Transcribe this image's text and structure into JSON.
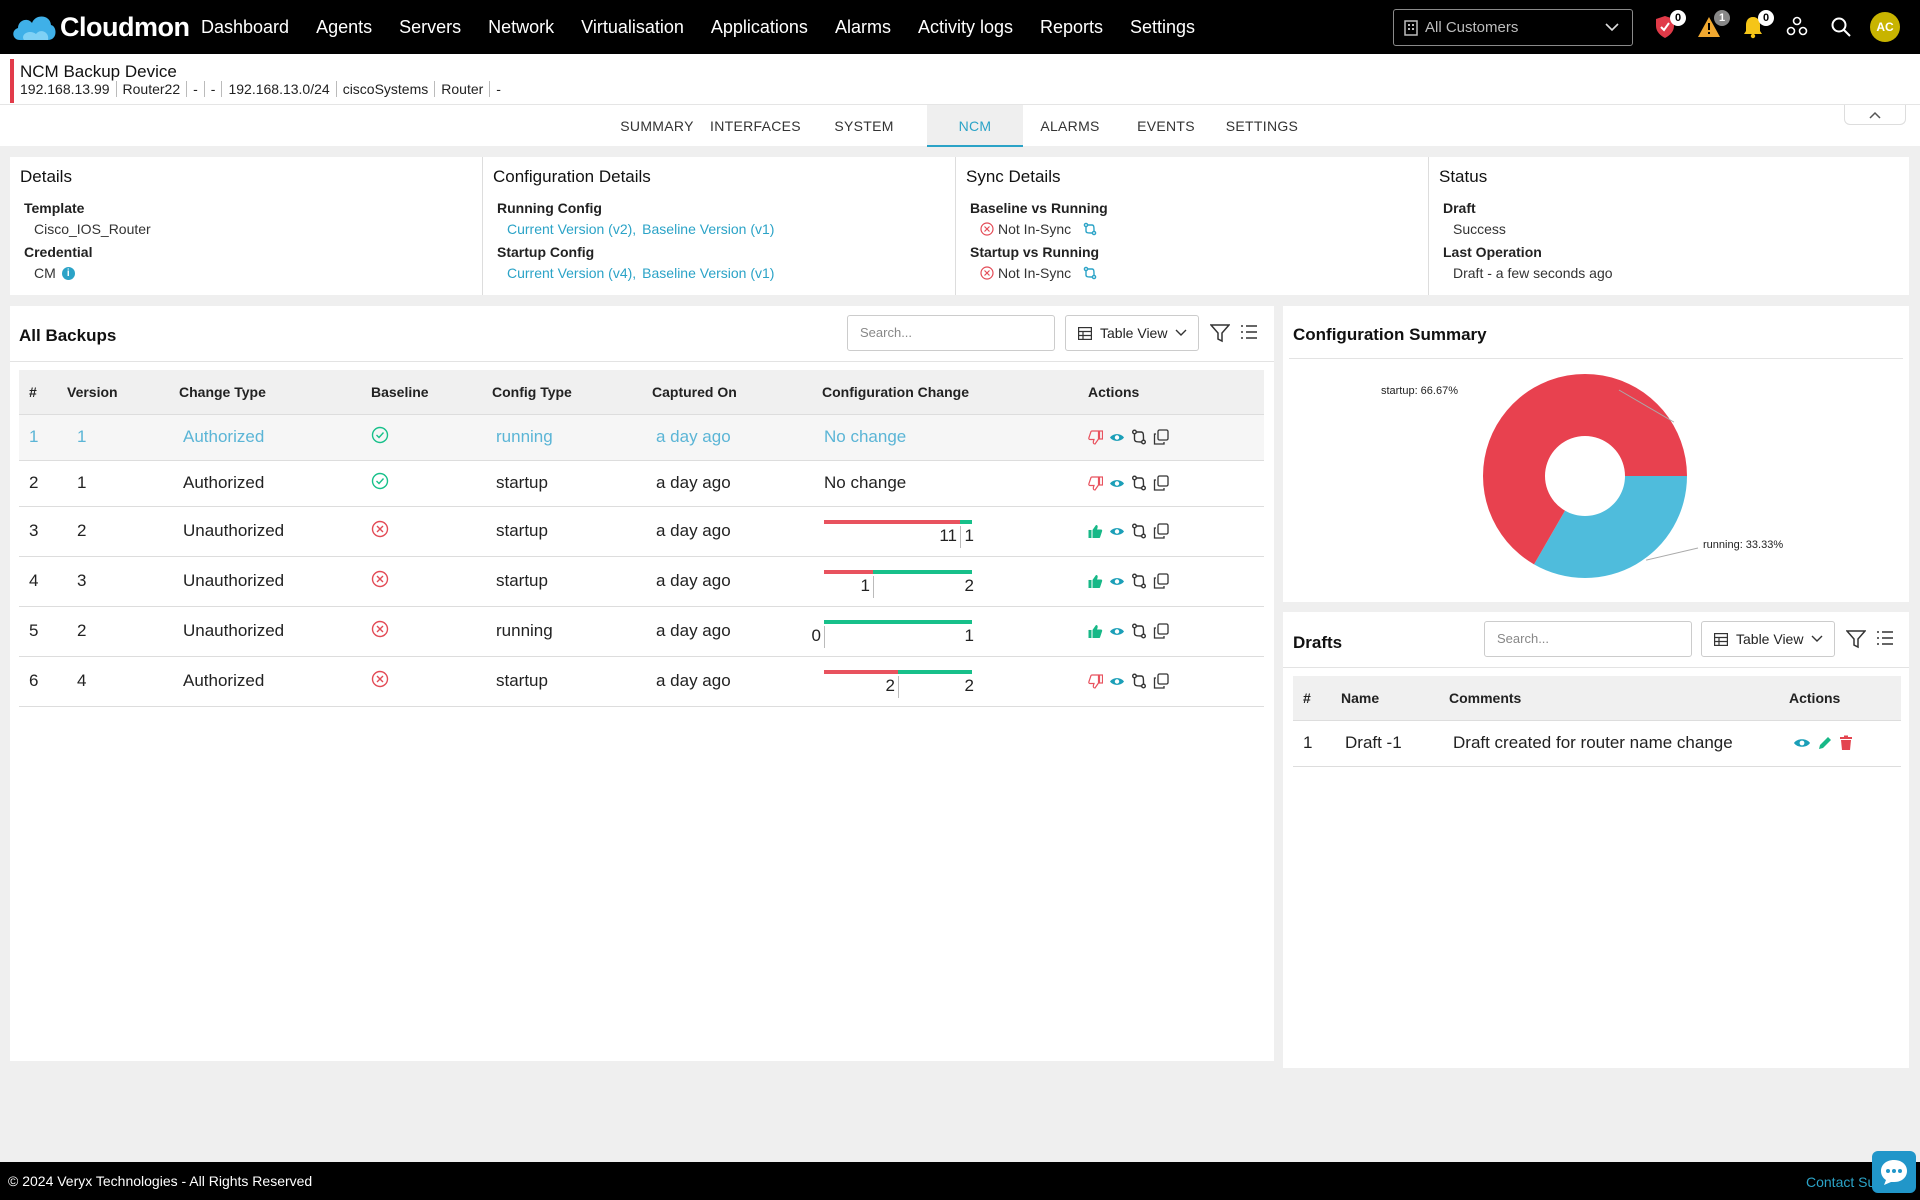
{
  "app": {
    "logo_text": "Cloudmon"
  },
  "nav": [
    "Dashboard",
    "Agents",
    "Servers",
    "Network",
    "Virtualisation",
    "Applications",
    "Alarms",
    "Activity logs",
    "Reports",
    "Settings"
  ],
  "customer_select": {
    "value": "All Customers"
  },
  "top_icons": {
    "shield_count": "0",
    "warning_count": "1",
    "bell_count": "0",
    "avatar": "AC"
  },
  "device": {
    "name": "NCM Backup Device",
    "meta": [
      "192.168.13.99",
      "Router22",
      "-",
      "-",
      "192.168.13.0/24",
      "ciscoSystems",
      "Router",
      "-"
    ]
  },
  "tabs": [
    "SUMMARY",
    "INTERFACES",
    "SYSTEM METRICS",
    "NCM",
    "ALARMS",
    "EVENTS",
    "SETTINGS"
  ],
  "active_tab": "NCM",
  "details": {
    "title": "Details",
    "template_label": "Template",
    "template_value": "Cisco_IOS_Router",
    "credential_label": "Credential",
    "credential_value": "CM"
  },
  "config_details": {
    "title": "Configuration Details",
    "running_label": "Running Config",
    "running_current": "Current Version (v2),",
    "running_baseline": "Baseline Version (v1)",
    "startup_label": "Startup Config",
    "startup_current": "Current Version (v4),",
    "startup_baseline": "Baseline Version (v1)"
  },
  "sync_details": {
    "title": "Sync Details",
    "bvr_label": "Baseline vs Running",
    "bvr_value": "Not In-Sync",
    "svr_label": "Startup vs Running",
    "svr_value": "Not In-Sync"
  },
  "status": {
    "title": "Status",
    "draft_label": "Draft",
    "draft_value": "Success",
    "lastop_label": "Last Operation",
    "lastop_value": "Draft - a few seconds ago"
  },
  "backups": {
    "title": "All Backups",
    "search_placeholder": "Search...",
    "view": "Table View",
    "columns": [
      "#",
      "Version",
      "Change Type",
      "Baseline",
      "Config Type",
      "Captured On",
      "Configuration Change",
      "Actions"
    ],
    "rows": [
      {
        "num": "1",
        "version": "1",
        "change_type": "Authorized",
        "baseline": "ok",
        "config_type": "running",
        "captured": "a day ago",
        "change_text": "No change",
        "removed": 0,
        "added": 0,
        "thumb": "down"
      },
      {
        "num": "2",
        "version": "1",
        "change_type": "Authorized",
        "baseline": "ok",
        "config_type": "startup",
        "captured": "a day ago",
        "change_text": "No change",
        "removed": 0,
        "added": 0,
        "thumb": "down"
      },
      {
        "num": "3",
        "version": "2",
        "change_type": "Unauthorized",
        "baseline": "no",
        "config_type": "startup",
        "captured": "a day ago",
        "change_text": "",
        "removed": 11,
        "added": 1,
        "thumb": "up"
      },
      {
        "num": "4",
        "version": "3",
        "change_type": "Unauthorized",
        "baseline": "no",
        "config_type": "startup",
        "captured": "a day ago",
        "change_text": "",
        "removed": 1,
        "added": 2,
        "thumb": "up"
      },
      {
        "num": "5",
        "version": "2",
        "change_type": "Unauthorized",
        "baseline": "no",
        "config_type": "running",
        "captured": "a day ago",
        "change_text": "",
        "removed": 0,
        "added": 1,
        "thumb": "up"
      },
      {
        "num": "6",
        "version": "4",
        "change_type": "Authorized",
        "baseline": "no",
        "config_type": "startup",
        "captured": "a day ago",
        "change_text": "",
        "removed": 2,
        "added": 2,
        "thumb": "down"
      }
    ]
  },
  "summary": {
    "title": "Configuration Summary",
    "chart_data": {
      "type": "pie",
      "title": "",
      "categories": [
        "startup",
        "running"
      ],
      "values": [
        66.67,
        33.33
      ],
      "labels": [
        "startup: 66.67%",
        "running: 33.33%"
      ],
      "colors": [
        "#e8414f",
        "#4fbcdc"
      ]
    }
  },
  "drafts": {
    "title": "Drafts",
    "search_placeholder": "Search...",
    "view": "Table View",
    "columns": [
      "#",
      "Name",
      "Comments",
      "Actions"
    ],
    "rows": [
      {
        "num": "1",
        "name": "Draft -1",
        "comments": "Draft created for router name change"
      }
    ]
  },
  "footer": {
    "copyright": "© 2024 Veryx Technologies - All Rights Reserved",
    "contact": "Contact Support"
  }
}
